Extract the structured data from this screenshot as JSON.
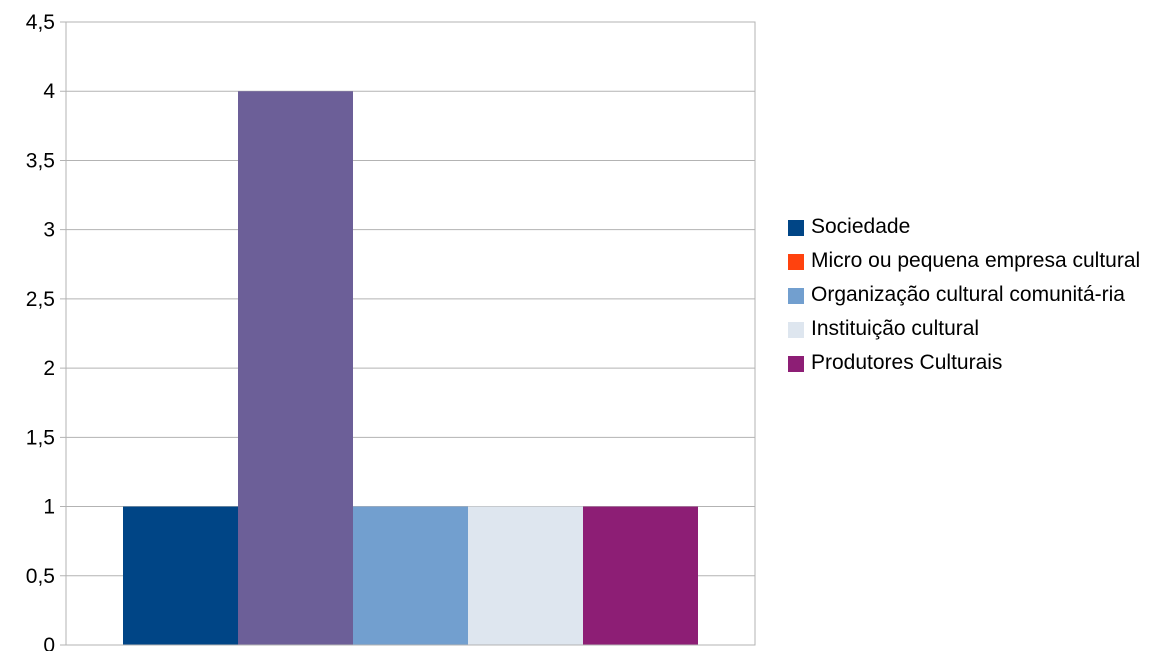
{
  "chart_data": {
    "type": "bar",
    "title": "",
    "xlabel": "",
    "ylabel": "",
    "ylim": [
      0,
      4.5
    ],
    "y_ticks": [
      "0",
      "0,5",
      "1",
      "1,5",
      "2",
      "2,5",
      "3",
      "3,5",
      "4",
      "4,5"
    ],
    "y_tick_values": [
      0,
      0.5,
      1,
      1.5,
      2,
      2.5,
      3,
      3.5,
      4,
      4.5
    ],
    "grid": true,
    "legend_position": "right",
    "series": [
      {
        "name": "Sociedade",
        "value": 1,
        "color": "#004586"
      },
      {
        "name": "Micro ou pequena empresa cultural",
        "value": 0,
        "color": "#ff420e"
      },
      {
        "name": "Organização cultural comunitá-ria",
        "value": 1,
        "color": "#729fcf"
      },
      {
        "name": "Instituição cultural",
        "value": 1,
        "color": "#dee6ef"
      },
      {
        "name": "Produtores Culturais",
        "value": 1,
        "color": "#8d1e75"
      }
    ],
    "extra_bars": [
      {
        "value": 4,
        "color": "#6c5f98"
      }
    ]
  }
}
